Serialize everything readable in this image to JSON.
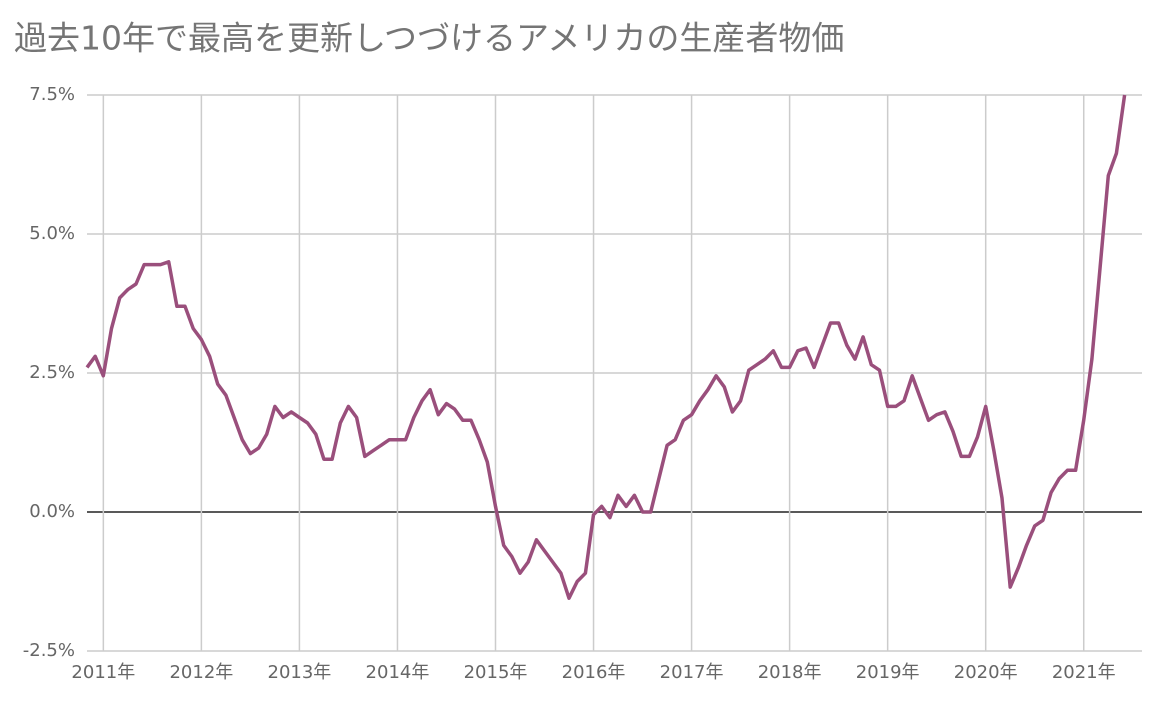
{
  "chart_data": {
    "type": "line",
    "title": "過去10年で最高を更新しつづけるアメリカの生産者物価",
    "categories": [
      null,
      null,
      "2011年",
      null,
      null,
      null,
      null,
      null,
      null,
      null,
      null,
      null,
      null,
      null,
      "2012年",
      null,
      null,
      null,
      null,
      null,
      null,
      null,
      null,
      null,
      null,
      null,
      "2013年",
      null,
      null,
      null,
      null,
      null,
      null,
      null,
      null,
      null,
      null,
      null,
      "2014年",
      null,
      null,
      null,
      null,
      null,
      null,
      null,
      null,
      null,
      null,
      null,
      "2015年",
      null,
      null,
      null,
      null,
      null,
      null,
      null,
      null,
      null,
      null,
      null,
      "2016年",
      null,
      null,
      null,
      null,
      null,
      null,
      null,
      null,
      null,
      null,
      null,
      "2017年",
      null,
      null,
      null,
      null,
      null,
      null,
      null,
      null,
      null,
      null,
      null,
      "2018年",
      null,
      null,
      null,
      null,
      null,
      null,
      null,
      null,
      null,
      null,
      null,
      "2019年",
      null,
      null,
      null,
      null,
      null,
      null,
      null,
      null,
      null,
      null,
      null,
      "2020年",
      null,
      null,
      null,
      null,
      null,
      null,
      null,
      null,
      null,
      null,
      null,
      "2021年",
      null,
      null,
      null,
      null,
      null
    ],
    "series": [
      {
        "color": "#9a4f7c",
        "values": [
          2.6,
          2.8,
          2.45,
          3.3,
          3.85,
          4.0,
          4.1,
          4.45,
          4.45,
          4.45,
          4.5,
          3.7,
          3.7,
          3.3,
          3.1,
          2.8,
          2.3,
          2.1,
          1.7,
          1.3,
          1.05,
          1.15,
          1.4,
          1.9,
          1.7,
          1.8,
          1.7,
          1.6,
          1.4,
          0.95,
          0.95,
          1.6,
          1.9,
          1.7,
          1.0,
          1.1,
          1.2,
          1.3,
          1.3,
          1.3,
          1.7,
          2.0,
          2.2,
          1.75,
          1.95,
          1.85,
          1.65,
          1.65,
          1.3,
          0.9,
          0.1,
          -0.6,
          -0.8,
          -1.1,
          -0.9,
          -0.5,
          -0.7,
          -0.9,
          -1.1,
          -1.55,
          -1.25,
          -1.1,
          -0.05,
          0.1,
          -0.1,
          0.3,
          0.1,
          0.3,
          0.0,
          0.0,
          0.6,
          1.2,
          1.3,
          1.65,
          1.75,
          2.0,
          2.2,
          2.45,
          2.25,
          1.8,
          2.0,
          2.55,
          2.65,
          2.75,
          2.9,
          2.6,
          2.6,
          2.9,
          2.95,
          2.6,
          3.0,
          3.4,
          3.4,
          3.0,
          2.75,
          3.15,
          2.65,
          2.55,
          1.9,
          1.9,
          2.0,
          2.45,
          2.05,
          1.65,
          1.75,
          1.8,
          1.45,
          1.0,
          1.0,
          1.35,
          1.9,
          1.1,
          0.25,
          -1.35,
          -1.0,
          -0.6,
          -0.25,
          -0.15,
          0.35,
          0.6,
          0.75,
          0.75,
          1.65,
          2.75,
          4.4,
          6.05,
          6.45,
          7.5
        ]
      }
    ],
    "ylim": [
      -2.5,
      7.5
    ],
    "yticks": [
      {
        "value": -2.5,
        "label": "-2.5%"
      },
      {
        "value": 0,
        "label": "0.0%"
      },
      {
        "value": 2.5,
        "label": "2.5%"
      },
      {
        "value": 5,
        "label": "5.0%"
      },
      {
        "value": 7.5,
        "label": "7.5%"
      }
    ],
    "grid": true
  }
}
